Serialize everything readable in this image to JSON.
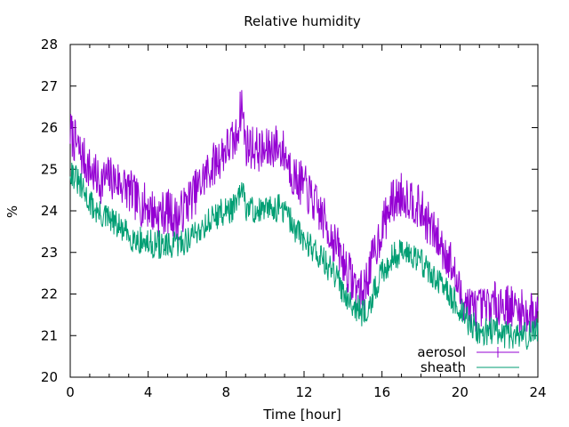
{
  "chart_data": {
    "type": "line",
    "title": "Relative humidity",
    "xlabel": "Time [hour]",
    "ylabel": "%",
    "xlim": [
      0,
      24
    ],
    "ylim": [
      20,
      28
    ],
    "xticks": [
      0,
      4,
      8,
      12,
      16,
      20,
      24
    ],
    "yticks": [
      20,
      21,
      22,
      23,
      24,
      25,
      26,
      27,
      28
    ],
    "grid": false,
    "legend_position": "bottom-right",
    "series": [
      {
        "name": "aerosol",
        "color": "#9400d3",
        "x": [
          0,
          0.5,
          1,
          1.5,
          2,
          2.5,
          3,
          3.5,
          4,
          4.5,
          5,
          5.5,
          6,
          6.5,
          7,
          7.5,
          8,
          8.5,
          8.8,
          9,
          9.5,
          10,
          10.5,
          11,
          11.5,
          12,
          12.5,
          13,
          13.5,
          14,
          14.5,
          15,
          15.5,
          16,
          16.5,
          17,
          17.5,
          18,
          18.5,
          19,
          19.5,
          20,
          20.5,
          21,
          21.5,
          22,
          22.5,
          23,
          23.5,
          24
        ],
        "y": [
          25.9,
          25.4,
          25.0,
          24.7,
          24.8,
          24.7,
          24.5,
          24.2,
          24.1,
          23.9,
          24.0,
          23.8,
          24.2,
          24.5,
          24.9,
          25.2,
          25.5,
          25.7,
          26.6,
          25.6,
          25.5,
          25.4,
          25.6,
          25.4,
          24.8,
          24.6,
          24.2,
          23.8,
          23.3,
          22.8,
          22.3,
          22.0,
          22.8,
          23.6,
          24.2,
          24.4,
          24.3,
          24.0,
          23.6,
          23.2,
          22.8,
          22.0,
          21.7,
          21.6,
          21.7,
          21.8,
          21.7,
          21.6,
          21.5,
          21.6
        ]
      },
      {
        "name": "sheath",
        "color": "#009e73",
        "x": [
          0,
          0.5,
          1,
          1.5,
          2,
          2.5,
          3,
          3.5,
          4,
          4.5,
          5,
          5.5,
          6,
          6.5,
          7,
          7.5,
          8,
          8.5,
          8.8,
          9,
          9.5,
          10,
          10.5,
          11,
          11.5,
          12,
          12.5,
          13,
          13.5,
          14,
          14.5,
          15,
          15.5,
          16,
          16.5,
          17,
          17.5,
          18,
          18.5,
          19,
          19.5,
          20,
          20.5,
          21,
          21.5,
          22,
          22.5,
          23,
          23.5,
          24
        ],
        "y": [
          25.0,
          24.6,
          24.2,
          23.9,
          23.8,
          23.6,
          23.4,
          23.3,
          23.2,
          23.2,
          23.1,
          23.2,
          23.3,
          23.5,
          23.7,
          23.9,
          24.0,
          24.1,
          24.5,
          24.1,
          24.0,
          24.0,
          24.1,
          24.0,
          23.6,
          23.3,
          23.1,
          22.8,
          22.5,
          22.1,
          21.8,
          21.5,
          21.9,
          22.5,
          22.9,
          23.0,
          23.0,
          22.8,
          22.5,
          22.2,
          22.0,
          21.6,
          21.3,
          21.1,
          21.1,
          21.1,
          21.0,
          21.0,
          21.0,
          21.1
        ]
      }
    ]
  }
}
